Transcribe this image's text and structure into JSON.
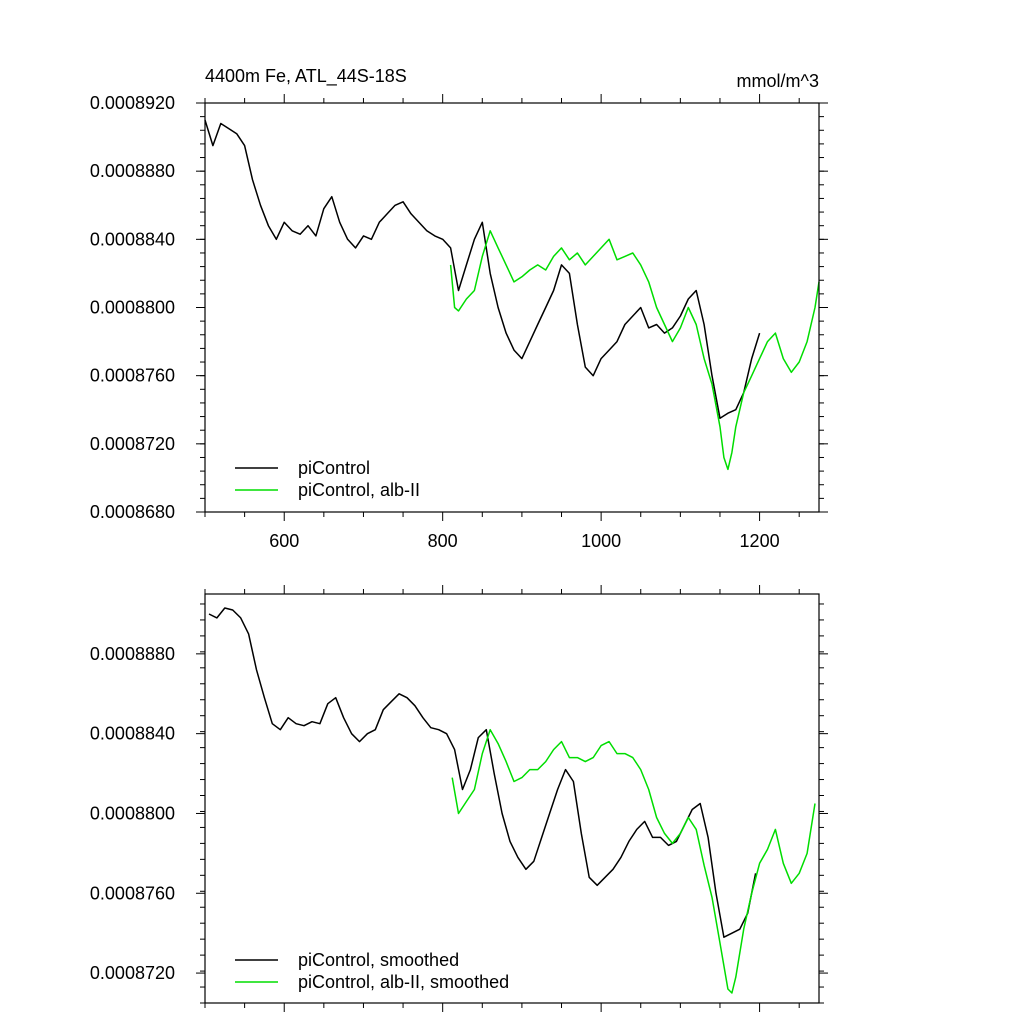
{
  "colors": {
    "piControl": "#000000",
    "alb": "#00dd00"
  },
  "chart_data": [
    {
      "type": "line",
      "title": "4400m Fe, ATL_44S-18S",
      "units": "mmol/m^3",
      "xlabel": "",
      "ylabel": "",
      "xlim": [
        500,
        1275
      ],
      "ylim": [
        0.000868,
        0.000892
      ],
      "xticks": [
        600,
        800,
        1000,
        1200
      ],
      "xtick_labels": [
        "600",
        "800",
        "1000",
        "1200"
      ],
      "yticks": [
        0.000868,
        0.000872,
        0.000876,
        0.00088,
        0.000884,
        0.000888,
        0.000892
      ],
      "ytick_labels": [
        "0.0008680",
        "0.0008720",
        "0.0008760",
        "0.0008800",
        "0.0008840",
        "0.0008880",
        "0.0008920"
      ],
      "legend_position": "bottom-left",
      "series": [
        {
          "name": "piControl",
          "x": [
            500,
            510,
            520,
            530,
            540,
            550,
            560,
            570,
            580,
            590,
            600,
            610,
            620,
            630,
            640,
            650,
            660,
            670,
            680,
            690,
            700,
            710,
            720,
            730,
            740,
            750,
            760,
            770,
            780,
            790,
            800,
            810,
            820,
            830,
            840,
            850,
            860,
            870,
            880,
            890,
            900,
            910,
            920,
            930,
            940,
            950,
            960,
            970,
            980,
            990,
            1000,
            1010,
            1020,
            1030,
            1040,
            1050,
            1060,
            1070,
            1080,
            1090,
            1100,
            1110,
            1120,
            1130,
            1140,
            1150,
            1160,
            1170,
            1180,
            1190,
            1200
          ],
          "y": [
            0.000891,
            0.0008895,
            0.0008908,
            0.0008905,
            0.0008902,
            0.0008895,
            0.0008875,
            0.000886,
            0.0008848,
            0.000884,
            0.000885,
            0.0008845,
            0.0008843,
            0.0008848,
            0.0008842,
            0.0008858,
            0.0008865,
            0.000885,
            0.000884,
            0.0008835,
            0.0008842,
            0.000884,
            0.000885,
            0.0008855,
            0.000886,
            0.0008862,
            0.0008855,
            0.000885,
            0.0008845,
            0.0008842,
            0.000884,
            0.0008835,
            0.000881,
            0.0008825,
            0.000884,
            0.000885,
            0.000882,
            0.00088,
            0.0008785,
            0.0008775,
            0.000877,
            0.000878,
            0.000879,
            0.00088,
            0.000881,
            0.0008825,
            0.000882,
            0.000879,
            0.0008765,
            0.000876,
            0.000877,
            0.0008775,
            0.000878,
            0.000879,
            0.0008795,
            0.00088,
            0.0008788,
            0.000879,
            0.0008785,
            0.0008788,
            0.0008795,
            0.0008805,
            0.000881,
            0.000879,
            0.000876,
            0.0008735,
            0.0008738,
            0.000874,
            0.000875,
            0.000877,
            0.0008785
          ]
        },
        {
          "name": "piControl, alb-II",
          "x": [
            810,
            815,
            820,
            830,
            840,
            850,
            860,
            870,
            880,
            890,
            900,
            910,
            920,
            930,
            940,
            950,
            960,
            970,
            980,
            990,
            1000,
            1010,
            1020,
            1030,
            1040,
            1050,
            1060,
            1070,
            1080,
            1090,
            1100,
            1110,
            1120,
            1130,
            1140,
            1150,
            1155,
            1160,
            1165,
            1170,
            1180,
            1190,
            1200,
            1210,
            1220,
            1230,
            1240,
            1250,
            1260,
            1270,
            1275
          ],
          "y": [
            0.0008825,
            0.00088,
            0.0008798,
            0.0008805,
            0.000881,
            0.000883,
            0.0008845,
            0.0008835,
            0.0008825,
            0.0008815,
            0.0008818,
            0.0008822,
            0.0008825,
            0.0008822,
            0.000883,
            0.0008835,
            0.0008828,
            0.0008832,
            0.0008825,
            0.000883,
            0.0008835,
            0.000884,
            0.0008828,
            0.000883,
            0.0008832,
            0.0008825,
            0.0008815,
            0.00088,
            0.000879,
            0.000878,
            0.0008788,
            0.00088,
            0.000879,
            0.000877,
            0.0008755,
            0.000873,
            0.0008712,
            0.0008705,
            0.0008715,
            0.000873,
            0.000875,
            0.000876,
            0.000877,
            0.000878,
            0.0008785,
            0.000877,
            0.0008762,
            0.0008768,
            0.000878,
            0.00088,
            0.0008815
          ]
        }
      ]
    },
    {
      "type": "line",
      "title": "",
      "xlabel": "",
      "ylabel": "",
      "xlim": [
        500,
        1275
      ],
      "ylim": [
        0.0008705,
        0.000891
      ],
      "xticks": [
        600,
        800,
        1000,
        1200
      ],
      "xtick_labels": [],
      "yticks": [
        0.000872,
        0.000876,
        0.00088,
        0.000884,
        0.000888
      ],
      "ytick_labels": [
        "0.0008720",
        "0.0008760",
        "0.0008800",
        "0.0008840",
        "0.0008880"
      ],
      "legend_position": "bottom-left",
      "series": [
        {
          "name": "piControl, smoothed",
          "x": [
            505,
            515,
            525,
            535,
            545,
            555,
            565,
            575,
            585,
            595,
            605,
            615,
            625,
            635,
            645,
            655,
            665,
            675,
            685,
            695,
            705,
            715,
            725,
            735,
            745,
            755,
            765,
            775,
            785,
            795,
            805,
            815,
            825,
            835,
            845,
            855,
            865,
            875,
            885,
            895,
            905,
            915,
            925,
            935,
            945,
            955,
            965,
            975,
            985,
            995,
            1005,
            1015,
            1025,
            1035,
            1045,
            1055,
            1065,
            1075,
            1085,
            1095,
            1105,
            1115,
            1125,
            1135,
            1145,
            1155,
            1165,
            1175,
            1185,
            1195
          ],
          "y": [
            0.00089,
            0.0008898,
            0.0008903,
            0.0008902,
            0.0008898,
            0.000889,
            0.0008872,
            0.0008858,
            0.0008845,
            0.0008842,
            0.0008848,
            0.0008845,
            0.0008844,
            0.0008846,
            0.0008845,
            0.0008855,
            0.0008858,
            0.0008848,
            0.000884,
            0.0008836,
            0.000884,
            0.0008842,
            0.0008852,
            0.0008856,
            0.000886,
            0.0008858,
            0.0008854,
            0.0008848,
            0.0008843,
            0.0008842,
            0.000884,
            0.0008832,
            0.0008812,
            0.0008822,
            0.0008838,
            0.0008842,
            0.000882,
            0.00088,
            0.0008786,
            0.0008778,
            0.0008772,
            0.0008776,
            0.0008788,
            0.00088,
            0.0008812,
            0.0008822,
            0.0008816,
            0.000879,
            0.0008768,
            0.0008764,
            0.0008768,
            0.0008772,
            0.0008778,
            0.0008786,
            0.0008792,
            0.0008796,
            0.0008788,
            0.0008788,
            0.0008784,
            0.0008786,
            0.0008794,
            0.0008802,
            0.0008805,
            0.0008788,
            0.000876,
            0.0008738,
            0.000874,
            0.0008742,
            0.000875,
            0.000877
          ]
        },
        {
          "name": "piControl, alb-II, smoothed",
          "x": [
            812,
            820,
            830,
            840,
            850,
            860,
            870,
            880,
            890,
            900,
            910,
            920,
            930,
            940,
            950,
            960,
            970,
            980,
            990,
            1000,
            1010,
            1020,
            1030,
            1040,
            1050,
            1060,
            1070,
            1080,
            1090,
            1100,
            1110,
            1120,
            1130,
            1140,
            1150,
            1160,
            1165,
            1170,
            1180,
            1190,
            1200,
            1210,
            1220,
            1230,
            1240,
            1250,
            1260,
            1270
          ],
          "y": [
            0.0008818,
            0.00088,
            0.0008806,
            0.0008812,
            0.000883,
            0.0008842,
            0.0008835,
            0.0008826,
            0.0008816,
            0.0008818,
            0.0008822,
            0.0008822,
            0.0008826,
            0.0008832,
            0.0008836,
            0.0008828,
            0.0008828,
            0.0008826,
            0.0008828,
            0.0008834,
            0.0008836,
            0.000883,
            0.000883,
            0.0008828,
            0.0008822,
            0.0008812,
            0.0008798,
            0.000879,
            0.0008785,
            0.000879,
            0.0008798,
            0.0008792,
            0.0008774,
            0.0008758,
            0.0008735,
            0.0008712,
            0.000871,
            0.0008718,
            0.0008742,
            0.000876,
            0.0008775,
            0.0008782,
            0.0008792,
            0.0008775,
            0.0008765,
            0.000877,
            0.000878,
            0.0008805
          ]
        }
      ]
    }
  ]
}
